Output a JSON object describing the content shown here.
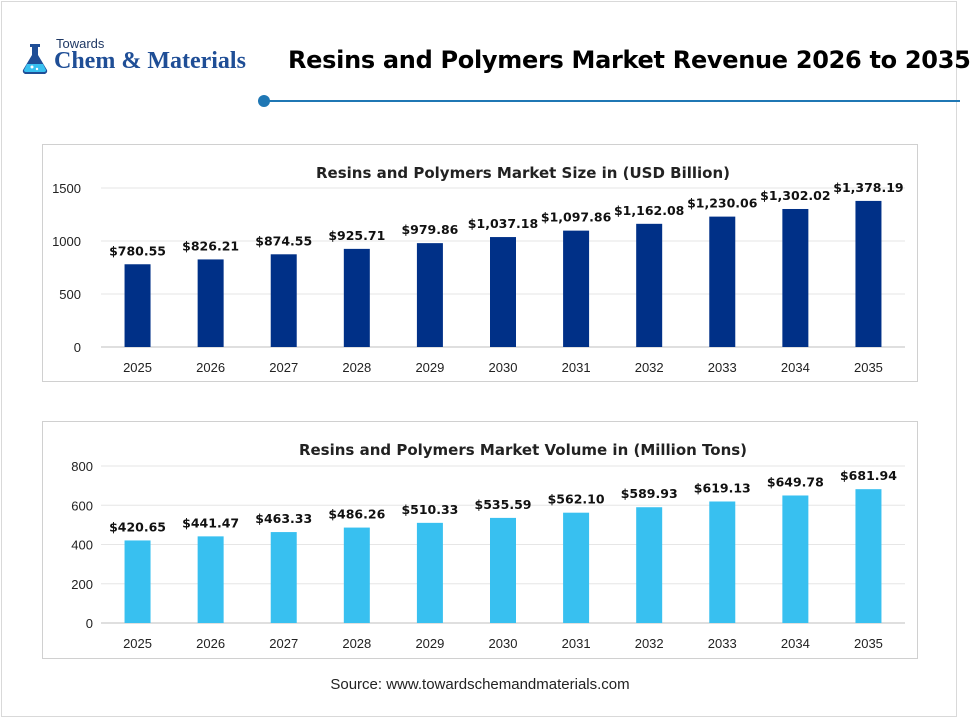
{
  "logo": {
    "line1": "Towards",
    "line2": "Chem & Materials"
  },
  "header": {
    "title": "Resins and Polymers Market Revenue 2026 to 2035"
  },
  "footer": {
    "source": "Source: www.towardschemandmaterials.com"
  },
  "colors": {
    "accent": "#1f77b4",
    "bar_dark": "#003087",
    "bar_light": "#38c0f0"
  },
  "chart_data": [
    {
      "type": "bar",
      "title": "Resins and Polymers Market Size in (USD Billion)",
      "categories": [
        "2025",
        "2026",
        "2027",
        "2028",
        "2029",
        "2030",
        "2031",
        "2032",
        "2033",
        "2034",
        "2035"
      ],
      "values": [
        780.55,
        826.21,
        874.55,
        925.71,
        979.86,
        1037.18,
        1097.86,
        1162.08,
        1230.06,
        1302.02,
        1378.19
      ],
      "data_labels": [
        "$780.55",
        "$826.21",
        "$874.55",
        "$925.71",
        "$979.86",
        "$1,037.18",
        "$1,097.86",
        "$1,162.08",
        "$1,230.06",
        "$1,302.02",
        "$1,378.19"
      ],
      "yticks": [
        "0",
        "500",
        "1000",
        "1500"
      ],
      "ylim": [
        0,
        1500
      ],
      "color": "#003087",
      "grid": true
    },
    {
      "type": "bar",
      "title": "Resins and Polymers Market Volume in (Million Tons)",
      "categories": [
        "2025",
        "2026",
        "2027",
        "2028",
        "2029",
        "2030",
        "2031",
        "2032",
        "2033",
        "2034",
        "2035"
      ],
      "values": [
        420.65,
        441.47,
        463.33,
        486.26,
        510.33,
        535.59,
        562.1,
        589.93,
        619.13,
        649.78,
        681.94
      ],
      "data_labels": [
        "$420.65",
        "$441.47",
        "$463.33",
        "$486.26",
        "$510.33",
        "$535.59",
        "$562.10",
        "$589.93",
        "$619.13",
        "$649.78",
        "$681.94"
      ],
      "yticks": [
        "0",
        "200",
        "400",
        "600",
        "800"
      ],
      "ylim": [
        0,
        800
      ],
      "color": "#38c0f0",
      "grid": true
    }
  ]
}
